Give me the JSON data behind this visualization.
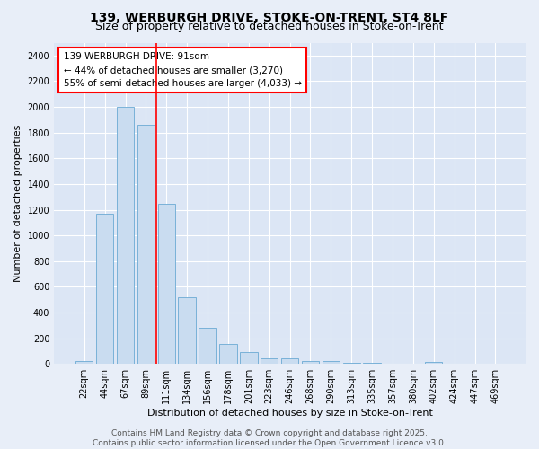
{
  "title1": "139, WERBURGH DRIVE, STOKE-ON-TRENT, ST4 8LF",
  "title2": "Size of property relative to detached houses in Stoke-on-Trent",
  "xlabel": "Distribution of detached houses by size in Stoke-on-Trent",
  "ylabel": "Number of detached properties",
  "categories": [
    "22sqm",
    "44sqm",
    "67sqm",
    "89sqm",
    "111sqm",
    "134sqm",
    "156sqm",
    "178sqm",
    "201sqm",
    "223sqm",
    "246sqm",
    "268sqm",
    "290sqm",
    "313sqm",
    "335sqm",
    "357sqm",
    "380sqm",
    "402sqm",
    "424sqm",
    "447sqm",
    "469sqm"
  ],
  "values": [
    25,
    1170,
    2000,
    1860,
    1245,
    520,
    280,
    155,
    90,
    45,
    45,
    20,
    20,
    10,
    5,
    3,
    2,
    15,
    2,
    2,
    2
  ],
  "bar_color": "#c9dcf0",
  "bar_edge_color": "#6aaad4",
  "bar_width": 0.85,
  "annotation_text": "139 WERBURGH DRIVE: 91sqm\n← 44% of detached houses are smaller (3,270)\n55% of semi-detached houses are larger (4,033) →",
  "ylim": [
    0,
    2500
  ],
  "yticks": [
    0,
    200,
    400,
    600,
    800,
    1000,
    1200,
    1400,
    1600,
    1800,
    2000,
    2200,
    2400
  ],
  "background_color": "#e8eef8",
  "plot_bg_color": "#dce6f5",
  "grid_color": "#ffffff",
  "footer_text": "Contains HM Land Registry data © Crown copyright and database right 2025.\nContains public sector information licensed under the Open Government Licence v3.0.",
  "title1_fontsize": 10,
  "title2_fontsize": 9,
  "axis_label_fontsize": 8,
  "tick_fontsize": 7,
  "annotation_fontsize": 7.5,
  "footer_fontsize": 6.5
}
